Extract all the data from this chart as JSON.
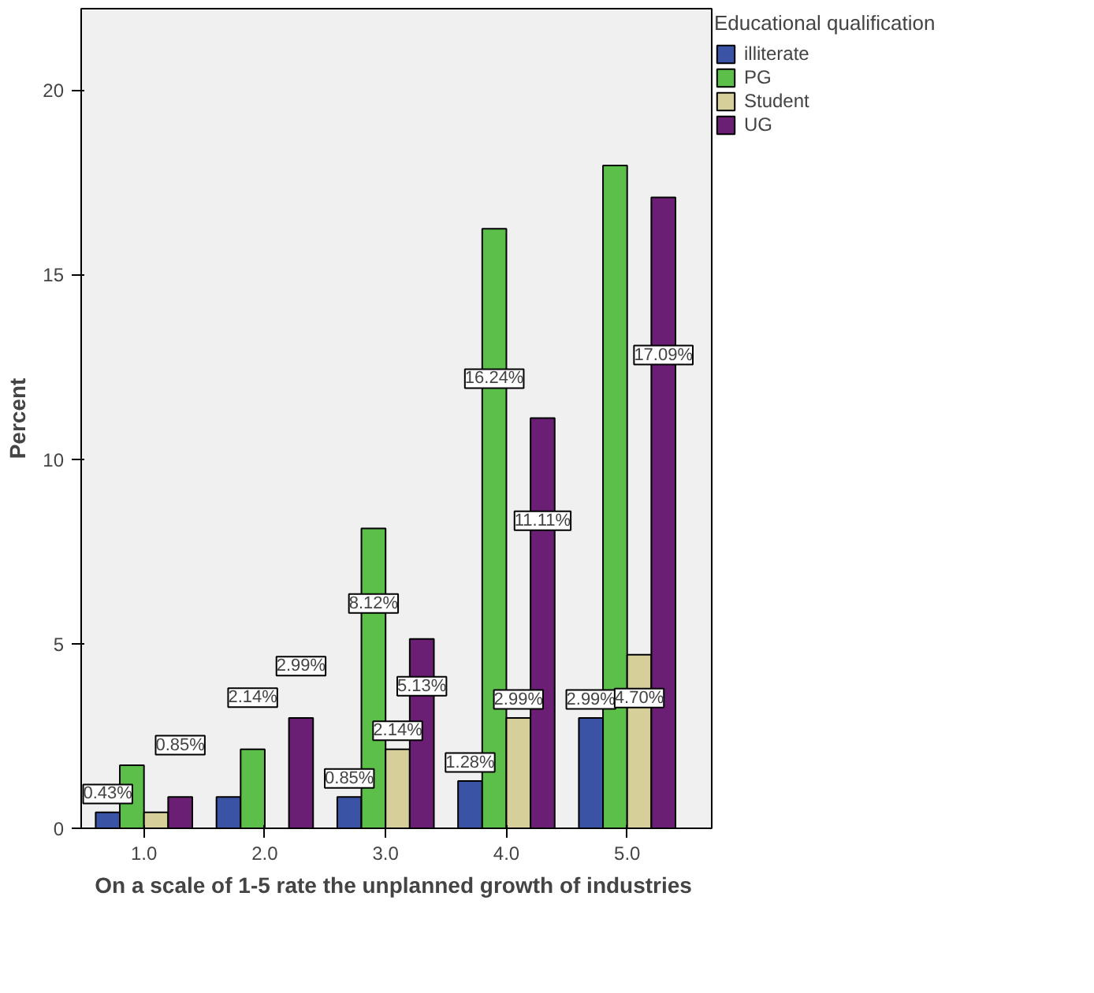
{
  "chart_data": {
    "type": "bar",
    "xlabel": "On a scale of 1-5  rate the unplanned growth of industries",
    "ylabel": "Percent",
    "legend_title": "Educational qualification",
    "legend": "right",
    "grid": false,
    "x": [
      1,
      2,
      3,
      4,
      5
    ],
    "xlim": [
      0.48,
      5.7
    ],
    "xticks": [
      {
        "value": 1,
        "label": "1.0"
      },
      {
        "value": 2,
        "label": "2.0"
      },
      {
        "value": 3,
        "label": "3.0"
      },
      {
        "value": 4,
        "label": "4.0"
      },
      {
        "value": 5,
        "label": "5.0"
      }
    ],
    "ylim": [
      0,
      22.2
    ],
    "yticks": [
      0,
      5,
      10,
      15,
      20
    ],
    "series": [
      {
        "name": "illiterate",
        "color": "#3a53a4",
        "values": [
          0.43,
          0.85,
          0.85,
          1.28,
          2.99
        ],
        "value_labels": [
          "0.43%",
          null,
          "0.85%",
          "1.28%",
          "2.99%"
        ]
      },
      {
        "name": "PG",
        "color": "#5cbf4a",
        "values": [
          1.71,
          2.14,
          8.12,
          16.24,
          17.95
        ],
        "value_labels": [
          null,
          "2.14%",
          "8.12%",
          "16.24%",
          null
        ]
      },
      {
        "name": "Student",
        "color": "#d6cf9a",
        "values": [
          0.43,
          0,
          2.14,
          2.99,
          4.7
        ],
        "value_labels": [
          null,
          null,
          "2.14%",
          "2.99%",
          "4.70%"
        ]
      },
      {
        "name": "UG",
        "color": "#6b1f74",
        "values": [
          0.85,
          2.99,
          5.13,
          11.11,
          17.09
        ],
        "value_labels": [
          "0.85%",
          "2.99%",
          "5.13%",
          "11.11%",
          "17.09%"
        ]
      }
    ]
  }
}
